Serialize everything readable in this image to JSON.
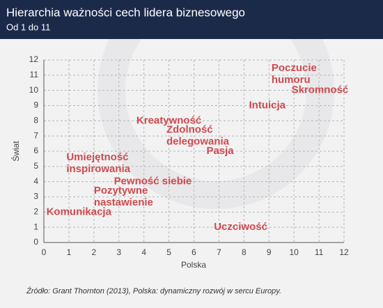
{
  "chart_data": {
    "type": "scatter",
    "title": "Hierarchia ważności cech lidera biznesowego",
    "subtitle": "Od 1 do 11",
    "x_label": "Polska",
    "y_label": "Świat",
    "source": "Źródło: Grant Thornton (2013), Polska: dynamiczny rozwój w sercu Europy.",
    "labels": [
      "Komunikacja",
      [
        "Pozytywne",
        "nastawienie"
      ],
      "Pewność siebie",
      [
        "Umiejętność",
        "inspirowania"
      ],
      "Kreatywność",
      [
        "Zdolność",
        "delegowania"
      ],
      "Pasja",
      "Intuicja",
      [
        "Poczucie",
        "humoru"
      ],
      "Skromność",
      "Uczciwość"
    ],
    "x": [
      0.1,
      2,
      2.8,
      0.9,
      3.7,
      4.9,
      6.5,
      8.2,
      9.1,
      9.9,
      6.8
    ],
    "y": [
      2,
      3,
      4,
      5.2,
      8,
      7,
      6,
      9,
      11.05,
      10,
      1
    ],
    "color": "#d0494f",
    "xlim": [
      0,
      12
    ],
    "ylim": [
      0,
      12
    ],
    "xticks": [
      0,
      1,
      2,
      3,
      4,
      5,
      6,
      7,
      8,
      9,
      10,
      11,
      12
    ],
    "yticks": [
      0,
      1,
      2,
      3,
      4,
      5,
      6,
      7,
      8,
      9,
      10,
      11,
      12
    ],
    "grid": true
  }
}
